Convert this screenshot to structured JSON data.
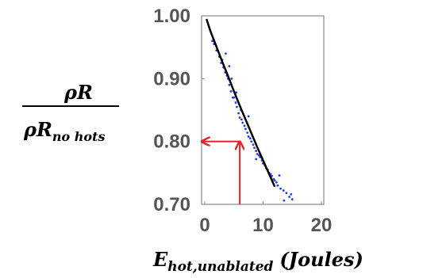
{
  "chart_data": {
    "type": "scatter",
    "title": "",
    "ylabel": {
      "numerator": "ρR",
      "denominator_main": "ρR",
      "denominator_sub": "no hots"
    },
    "xlabel": {
      "main": "E",
      "sub": "hot,unablated",
      "unit": "(Joules)"
    },
    "xlim": [
      0,
      20
    ],
    "ylim": [
      0.7,
      1.0
    ],
    "x_ticks": [
      0,
      10,
      20
    ],
    "x_tick_labels": [
      "0",
      "10",
      "20"
    ],
    "y_ticks": [
      1.0,
      0.9,
      0.8,
      0.7
    ],
    "y_tick_labels": [
      "1.00",
      "0.90",
      "0.80",
      "0.70"
    ],
    "grid": false,
    "legend": "none",
    "colors": {
      "scatter": "#1f3fe0",
      "fit": "#000000",
      "arrow": "#e8202a",
      "axis": "#888888"
    },
    "series": [
      {
        "kind": "fit-line",
        "x": [
          0.3,
          1,
          2,
          3,
          4,
          5,
          6,
          7,
          8,
          9,
          10,
          11,
          12
        ],
        "y": [
          0.995,
          0.975,
          0.951,
          0.927,
          0.904,
          0.88,
          0.857,
          0.835,
          0.813,
          0.791,
          0.77,
          0.749,
          0.728
        ]
      },
      {
        "kind": "scatter",
        "x": [
          1.3,
          1.6,
          2.0,
          2.2,
          2.5,
          2.8,
          3.0,
          3.2,
          3.5,
          3.8,
          4.0,
          4.2,
          4.5,
          4.8,
          5.0,
          5.3,
          5.5,
          5.8,
          6.0,
          6.3,
          6.5,
          6.8,
          7.0,
          7.3,
          7.5,
          7.8,
          8.0,
          8.3,
          8.5,
          8.8,
          9.0,
          9.3,
          9.5,
          9.8,
          10.0,
          10.3,
          10.5,
          10.8,
          11.0,
          11.3,
          11.5,
          11.8,
          12.0,
          12.3,
          12.5,
          13.0,
          13.5,
          14.0,
          14.5,
          15.0,
          3.6,
          4.2,
          4.6,
          5.4,
          6.2,
          7.5,
          8.8,
          12.8,
          13.6,
          14.8
        ],
        "y": [
          0.96,
          0.955,
          0.945,
          0.945,
          0.935,
          0.925,
          0.93,
          0.918,
          0.91,
          0.905,
          0.9,
          0.89,
          0.88,
          0.87,
          0.87,
          0.862,
          0.855,
          0.845,
          0.838,
          0.835,
          0.83,
          0.825,
          0.82,
          0.814,
          0.808,
          0.805,
          0.8,
          0.795,
          0.79,
          0.785,
          0.78,
          0.778,
          0.775,
          0.77,
          0.765,
          0.762,
          0.758,
          0.755,
          0.75,
          0.748,
          0.745,
          0.74,
          0.738,
          0.735,
          0.73,
          0.725,
          0.722,
          0.718,
          0.712,
          0.708,
          0.94,
          0.92,
          0.9,
          0.878,
          0.85,
          0.84,
          0.772,
          0.746,
          0.706,
          0.716
        ]
      }
    ],
    "annotations": [
      {
        "kind": "arrow-horizontal",
        "y": 0.8,
        "x_from": 6.0,
        "x_to": -0.5
      },
      {
        "kind": "arrow-vertical",
        "x": 6.0,
        "y_from": 0.7,
        "y_to": 0.8
      }
    ]
  }
}
